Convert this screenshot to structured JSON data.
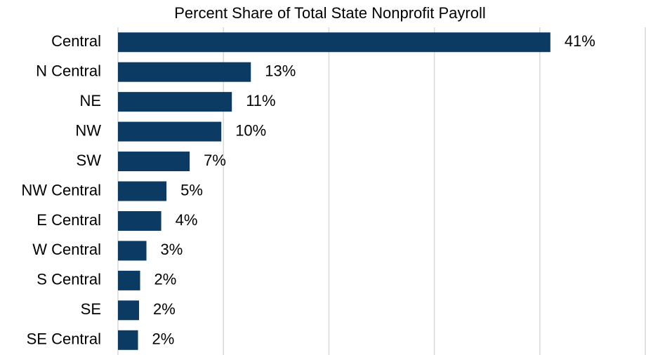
{
  "chart_data": {
    "type": "bar",
    "orientation": "horizontal",
    "title": "Percent Share of Total State Nonprofit Payroll",
    "categories": [
      "Central",
      "N Central",
      "NE",
      "NW",
      "SW",
      "NW Central",
      "E Central",
      "W Central",
      "S Central",
      "SE",
      "SE Central"
    ],
    "values": [
      41.0,
      12.6,
      10.8,
      9.8,
      6.8,
      4.6,
      4.1,
      2.7,
      2.1,
      2.0,
      1.9
    ],
    "value_labels": [
      "41%",
      "13%",
      "11%",
      "10%",
      "7%",
      "5%",
      "4%",
      "3%",
      "2%",
      "2%",
      "2%"
    ],
    "color": "#0b3a63",
    "xlim": [
      0,
      50
    ],
    "xticks": [
      0,
      10,
      20,
      30,
      40,
      50
    ],
    "grid": true
  }
}
